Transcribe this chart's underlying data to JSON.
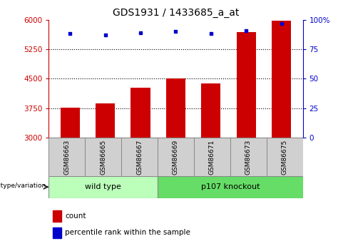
{
  "title": "GDS1931 / 1433685_a_at",
  "samples": [
    "GSM86663",
    "GSM86665",
    "GSM86667",
    "GSM86669",
    "GSM86671",
    "GSM86673",
    "GSM86675"
  ],
  "counts": [
    3760,
    3870,
    4270,
    4510,
    4380,
    5680,
    5980
  ],
  "percentile_ranks": [
    88,
    87,
    89,
    90,
    88,
    91,
    97
  ],
  "ylim_left": [
    3000,
    6000
  ],
  "ylim_right": [
    0,
    100
  ],
  "yticks_left": [
    3000,
    3750,
    4500,
    5250,
    6000
  ],
  "yticks_right": [
    0,
    25,
    50,
    75,
    100
  ],
  "bar_color": "#cc0000",
  "dot_color": "#0000cc",
  "bar_width": 0.55,
  "grid_color": "#000000",
  "wild_type_label": "wild type",
  "knockout_label": "p107 knockout",
  "group_label": "genotype/variation",
  "legend_count_label": "count",
  "legend_pct_label": "percentile rank within the sample",
  "bg_color_wt": "#bbffbb",
  "bg_color_ko": "#66dd66",
  "sample_box_color": "#d0d0d0",
  "tick_label_color_left": "#cc0000",
  "tick_label_color_right": "#0000cc",
  "n_wt": 3,
  "n_ko": 4
}
